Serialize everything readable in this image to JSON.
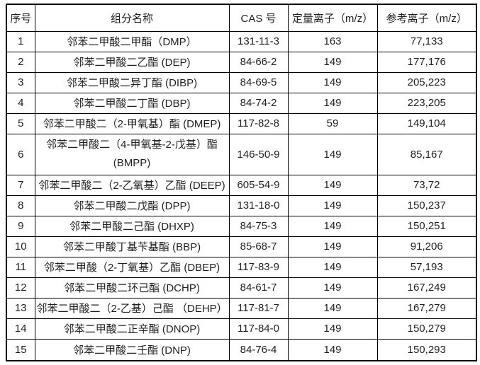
{
  "table": {
    "headers": [
      "序号",
      "组分名称",
      "CAS 号",
      "定量离子（m/z）",
      "参考离子（m/z）"
    ],
    "rows": [
      {
        "no": "1",
        "name": "邻苯二甲酸二甲酯（DMP）",
        "cas": "131-11-3",
        "quant": "163",
        "ref": "77,133"
      },
      {
        "no": "2",
        "name": "邻苯二甲酸二乙酯 (DEP)",
        "cas": "84-66-2",
        "quant": "149",
        "ref": "177,176"
      },
      {
        "no": "3",
        "name": "邻苯二甲酸二异丁酯 (DIBP)",
        "cas": "84-69-5",
        "quant": "149",
        "ref": "205,223"
      },
      {
        "no": "4",
        "name": "邻苯二甲酸二丁酯 (DBP)",
        "cas": "84-74-2",
        "quant": "149",
        "ref": "223,205"
      },
      {
        "no": "5",
        "name": "邻苯二甲酸二（2-甲氧基）酯 (DMEP)",
        "cas": "117-82-8",
        "quant": "59",
        "ref": "149,104"
      },
      {
        "no": "6",
        "name": "邻苯二甲酸二（4-甲氧基-2-戊基）酯",
        "name2": "(BMPP)",
        "cas": "146-50-9",
        "quant": "149",
        "ref": "85,167"
      },
      {
        "no": "7",
        "name": "邻苯二甲酸二（2-乙氧基）乙酯 (DEEP)",
        "cas": "605-54-9",
        "quant": "149",
        "ref": "73,72"
      },
      {
        "no": "8",
        "name": "邻苯二甲酸二戊酯 (DPP)",
        "cas": "131-18-0",
        "quant": "149",
        "ref": "150,237"
      },
      {
        "no": "9",
        "name": "邻苯二甲酸二己酯 (DHXP)",
        "cas": "84-75-3",
        "quant": "149",
        "ref": "150,251"
      },
      {
        "no": "10",
        "name": "邻苯二甲酸丁基苄基酯 (BBP)",
        "cas": "85-68-7",
        "quant": "149",
        "ref": "91,206"
      },
      {
        "no": "11",
        "name": "邻苯二甲酸（2-丁氧基）乙酯 (DBEP)",
        "cas": "117-83-9",
        "quant": "149",
        "ref": "57,193"
      },
      {
        "no": "12",
        "name": "邻苯二甲酸二环己酯 (DCHP)",
        "cas": "84-61-7",
        "quant": "149",
        "ref": "167,249"
      },
      {
        "no": "13",
        "name": "邻苯二甲酸二（2-乙基）己酯 （DEHP）",
        "cas": "117-81-7",
        "quant": "149",
        "ref": "167,279"
      },
      {
        "no": "14",
        "name": "邻苯二甲酸二正辛酯 (DNOP)",
        "cas": "117-84-0",
        "quant": "149",
        "ref": "150,279"
      },
      {
        "no": "15",
        "name": "邻苯二甲酸二壬酯 (DNP)",
        "cas": "84-76-4",
        "quant": "149",
        "ref": "150,293"
      }
    ]
  }
}
